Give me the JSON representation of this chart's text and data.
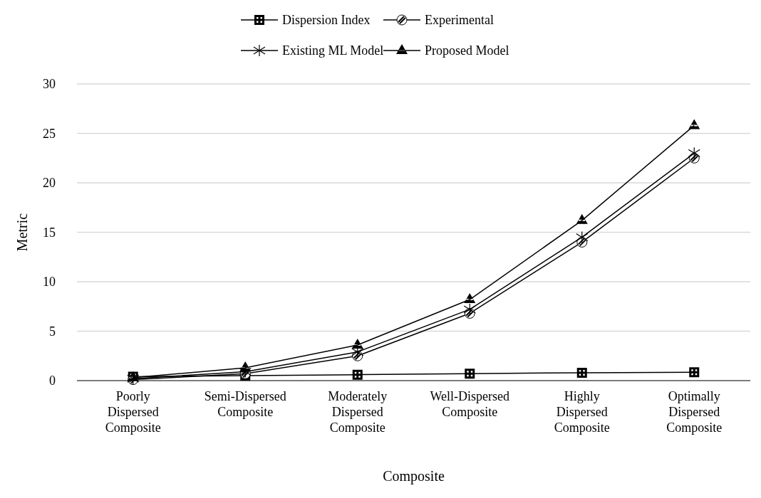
{
  "chart_data": {
    "type": "line",
    "xlabel": "Composite",
    "ylabel": "Metric",
    "categories": [
      "Poorly Dispersed Composite",
      "Semi-Dispersed Composite",
      "Moderately Dispersed Composite",
      "Well-Dispersed Composite",
      "Highly Dispersed Composite",
      "Optimally Dispersed Composite"
    ],
    "series": [
      {
        "name": "Dispersion Index",
        "color": "#000000",
        "marker": "square",
        "values": [
          0.4,
          0.5,
          0.6,
          0.7,
          0.8,
          0.85
        ]
      },
      {
        "name": "Experimental",
        "color": "#000000",
        "marker": "circle",
        "values": [
          0.1,
          0.7,
          2.5,
          6.8,
          14.0,
          22.5
        ]
      },
      {
        "name": "Existing ML Model",
        "color": "#000000",
        "marker": "cross",
        "values": [
          0.2,
          0.9,
          2.9,
          7.2,
          14.5,
          23.0
        ]
      },
      {
        "name": "Proposed Model",
        "color": "#000000",
        "marker": "triangle",
        "values": [
          0.3,
          1.3,
          3.6,
          8.2,
          16.2,
          25.8
        ]
      }
    ],
    "ylim": [
      0,
      30
    ],
    "yticks": [
      0,
      5,
      10,
      15,
      20,
      25,
      30
    ],
    "grid": "y",
    "legend": "top",
    "line_style": "solid"
  }
}
